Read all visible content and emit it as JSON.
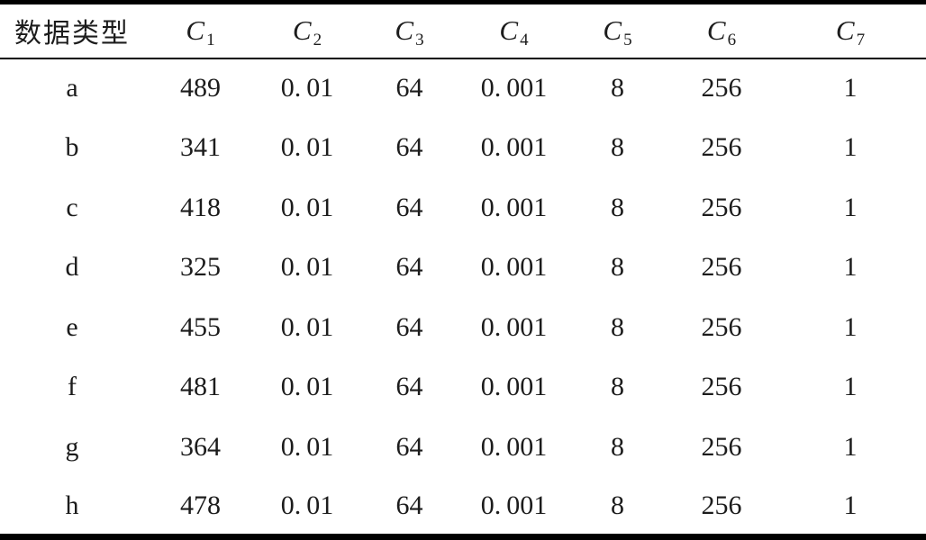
{
  "table": {
    "headers": [
      {
        "label": "数据类型"
      },
      {
        "base": "C",
        "sub": "1"
      },
      {
        "base": "C",
        "sub": "2"
      },
      {
        "base": "C",
        "sub": "3"
      },
      {
        "base": "C",
        "sub": "4"
      },
      {
        "base": "C",
        "sub": "5"
      },
      {
        "base": "C",
        "sub": "6"
      },
      {
        "base": "C",
        "sub": "7"
      }
    ],
    "rows": [
      {
        "label": "a",
        "values": [
          "489",
          "0.01",
          "64",
          "0.001",
          "8",
          "256",
          "1"
        ]
      },
      {
        "label": "b",
        "values": [
          "341",
          "0.01",
          "64",
          "0.001",
          "8",
          "256",
          "1"
        ]
      },
      {
        "label": "c",
        "values": [
          "418",
          "0.01",
          "64",
          "0.001",
          "8",
          "256",
          "1"
        ]
      },
      {
        "label": "d",
        "values": [
          "325",
          "0.01",
          "64",
          "0.001",
          "8",
          "256",
          "1"
        ]
      },
      {
        "label": "e",
        "values": [
          "455",
          "0.01",
          "64",
          "0.001",
          "8",
          "256",
          "1"
        ]
      },
      {
        "label": "f",
        "values": [
          "481",
          "0.01",
          "64",
          "0.001",
          "8",
          "256",
          "1"
        ]
      },
      {
        "label": "g",
        "values": [
          "364",
          "0.01",
          "64",
          "0.001",
          "8",
          "256",
          "1"
        ]
      },
      {
        "label": "h",
        "values": [
          "478",
          "0.01",
          "64",
          "0.001",
          "8",
          "256",
          "1"
        ]
      }
    ]
  },
  "colors": {
    "background": "#ffffff",
    "text": "#1c1c1c",
    "rule": "#000000"
  }
}
